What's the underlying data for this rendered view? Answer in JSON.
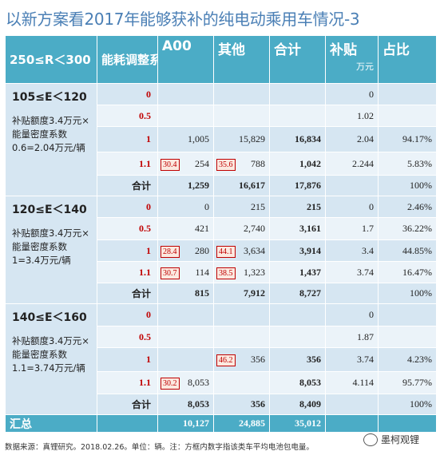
{
  "title": "以新方案看2017年能够获补的纯电动乘用车情况-3",
  "header": {
    "c1": "250≤R＜300",
    "c2": "能耗调整系数",
    "c3": "A00",
    "c4": "其他",
    "c5": "合计",
    "c6": "补贴",
    "c6_unit": "万元",
    "c7": "占比"
  },
  "groups": [
    {
      "cond": "105≤E＜120",
      "desc": "补贴额度3.4万元×能量密度系数0.6=2.04万元/辆",
      "rows": [
        {
          "coef": "0",
          "a00": "",
          "a00_box": "",
          "other": "",
          "other_box": "",
          "total": "",
          "subsidy": "0",
          "share": ""
        },
        {
          "coef": "0.5",
          "a00": "",
          "a00_box": "",
          "other": "",
          "other_box": "",
          "total": "",
          "subsidy": "1.02",
          "share": ""
        },
        {
          "coef": "1",
          "a00": "1,005",
          "a00_box": "",
          "other": "15,829",
          "other_box": "",
          "total": "16,834",
          "subsidy": "2.04",
          "share": "94.17%"
        },
        {
          "coef": "1.1",
          "a00": "254",
          "a00_box": "30.4",
          "other": "788",
          "other_box": "35.6",
          "total": "1,042",
          "subsidy": "2.244",
          "share": "5.83%"
        },
        {
          "coef": "合计",
          "a00": "1,259",
          "a00_box": "",
          "other": "16,617",
          "other_box": "",
          "total": "17,876",
          "subsidy": "",
          "share": "100%"
        }
      ]
    },
    {
      "cond": "120≤E＜140",
      "desc": "补贴额度3.4万元×能量密度系数1=3.4万元/辆",
      "rows": [
        {
          "coef": "0",
          "a00": "0",
          "a00_box": "",
          "other": "215",
          "other_box": "",
          "total": "215",
          "subsidy": "0",
          "share": "2.46%"
        },
        {
          "coef": "0.5",
          "a00": "421",
          "a00_box": "",
          "other": "2,740",
          "other_box": "",
          "total": "3,161",
          "subsidy": "1.7",
          "share": "36.22%"
        },
        {
          "coef": "1",
          "a00": "280",
          "a00_box": "28.4",
          "other": "3,634",
          "other_box": "44.1",
          "total": "3,914",
          "subsidy": "3.4",
          "share": "44.85%"
        },
        {
          "coef": "1.1",
          "a00": "114",
          "a00_box": "30.7",
          "other": "1,323",
          "other_box": "38.5",
          "total": "1,437",
          "subsidy": "3.74",
          "share": "16.47%"
        },
        {
          "coef": "合计",
          "a00": "815",
          "a00_box": "",
          "other": "7,912",
          "other_box": "",
          "total": "8,727",
          "subsidy": "",
          "share": "100%"
        }
      ]
    },
    {
      "cond": "140≤E＜160",
      "desc": "补贴额度3.4万元×能量密度系数1.1=3.74万元/辆",
      "rows": [
        {
          "coef": "0",
          "a00": "",
          "a00_box": "",
          "other": "",
          "other_box": "",
          "total": "",
          "subsidy": "0",
          "share": ""
        },
        {
          "coef": "0.5",
          "a00": "",
          "a00_box": "",
          "other": "",
          "other_box": "",
          "total": "",
          "subsidy": "1.87",
          "share": ""
        },
        {
          "coef": "1",
          "a00": "",
          "a00_box": "",
          "other": "356",
          "other_box": "46.2",
          "total": "356",
          "subsidy": "3.74",
          "share": "4.23%"
        },
        {
          "coef": "1.1",
          "a00": "8,053",
          "a00_box": "30.2",
          "other": "",
          "other_box": "",
          "total": "8,053",
          "subsidy": "4.114",
          "share": "95.77%"
        },
        {
          "coef": "合计",
          "a00": "8,053",
          "a00_box": "",
          "other": "356",
          "other_box": "",
          "total": "8,409",
          "subsidy": "",
          "share": "100%"
        }
      ]
    }
  ],
  "summary": {
    "label": "汇总",
    "a00": "10,127",
    "other": "24,885",
    "total": "35,012"
  },
  "footer": "数据来源：真锂研究。2018.02.26。单位：辆。注：方框内数字指该类车平均电池包电量。",
  "logo": "墨柯观锂"
}
